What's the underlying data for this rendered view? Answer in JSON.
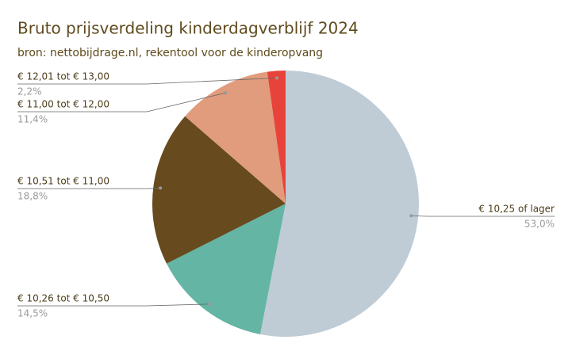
{
  "chart_data": {
    "type": "pie",
    "title": "Bruto prijsverdeling kinderdagverblijf 2024",
    "subtitle": "bron: nettobijdrage.nl, rekentool voor de kinderopvang",
    "categories": [
      "€ 10,25 of lager",
      "€ 10,26 tot € 10,50",
      "€ 10,51 tot € 11,00",
      "€ 11,00 tot € 12,00",
      "€ 12,01 tot € 13,00"
    ],
    "values": [
      53.0,
      14.5,
      18.8,
      11.4,
      2.2
    ],
    "value_labels": [
      "53,0%",
      "14,5%",
      "18,8%",
      "11,4%",
      "2,2%"
    ],
    "colors": [
      "#bfccd5",
      "#64b5a3",
      "#674a1e",
      "#e09c7d",
      "#e8433a"
    ]
  }
}
